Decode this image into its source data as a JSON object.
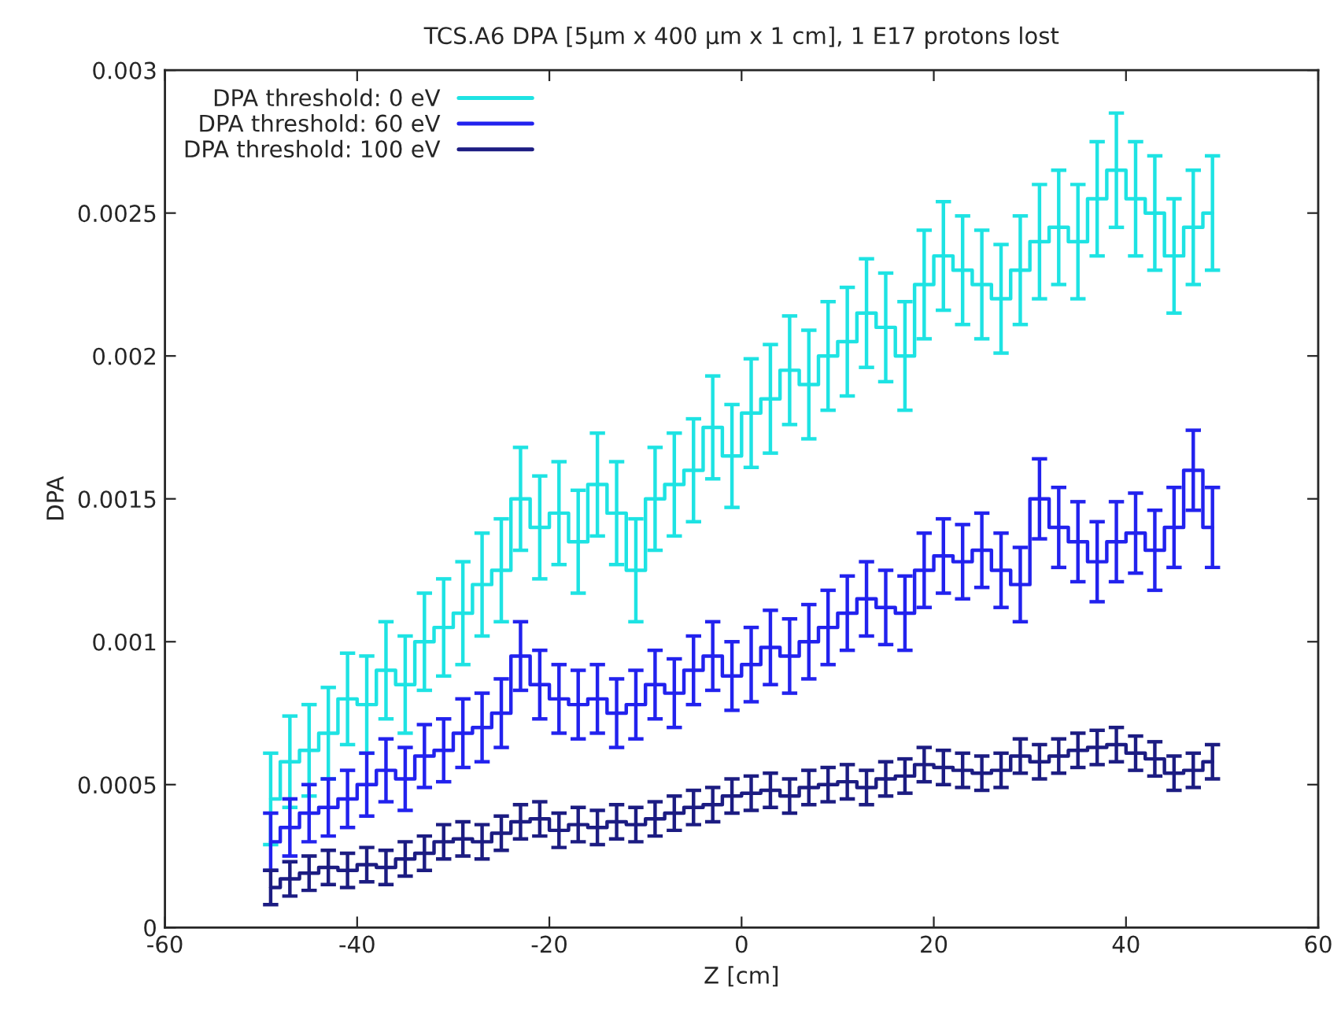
{
  "chart_data": {
    "type": "step",
    "title": "TCS.A6 DPA [5µm x 400 µm x 1 cm], 1 E17 protons lost",
    "xlabel": "Z [cm]",
    "ylabel": "DPA",
    "x": [
      -49,
      -47,
      -45,
      -43,
      -41,
      -39,
      -37,
      -35,
      -33,
      -31,
      -29,
      -27,
      -25,
      -23,
      -21,
      -19,
      -17,
      -15,
      -13,
      -11,
      -9,
      -7,
      -5,
      -3,
      -1,
      1,
      3,
      5,
      7,
      9,
      11,
      13,
      15,
      17,
      19,
      21,
      23,
      25,
      27,
      29,
      31,
      33,
      35,
      37,
      39,
      41,
      43,
      45,
      47,
      49
    ],
    "series": [
      {
        "name": "DPA threshold: 0 eV",
        "color": "#1ee3e3",
        "values": [
          0.00045,
          0.00058,
          0.00062,
          0.00068,
          0.0008,
          0.00078,
          0.0009,
          0.00085,
          0.001,
          0.00105,
          0.0011,
          0.0012,
          0.00125,
          0.0015,
          0.0014,
          0.00145,
          0.00135,
          0.00155,
          0.00145,
          0.00125,
          0.0015,
          0.00155,
          0.0016,
          0.00175,
          0.00165,
          0.0018,
          0.00185,
          0.00195,
          0.0019,
          0.002,
          0.00205,
          0.00215,
          0.0021,
          0.002,
          0.00225,
          0.00235,
          0.0023,
          0.00225,
          0.0022,
          0.0023,
          0.0024,
          0.00245,
          0.0024,
          0.00255,
          0.00265,
          0.00255,
          0.0025,
          0.00235,
          0.00245,
          0.0025
        ],
        "errors": [
          0.00016,
          0.00016,
          0.00016,
          0.00016,
          0.00016,
          0.00017,
          0.00017,
          0.00017,
          0.00017,
          0.00017,
          0.00018,
          0.00018,
          0.00018,
          0.00018,
          0.00018,
          0.00018,
          0.00018,
          0.00018,
          0.00018,
          0.00018,
          0.00018,
          0.00018,
          0.00018,
          0.00018,
          0.00018,
          0.00019,
          0.00019,
          0.00019,
          0.00019,
          0.00019,
          0.00019,
          0.00019,
          0.00019,
          0.00019,
          0.00019,
          0.00019,
          0.00019,
          0.00019,
          0.00019,
          0.00019,
          0.0002,
          0.0002,
          0.0002,
          0.0002,
          0.0002,
          0.0002,
          0.0002,
          0.0002,
          0.0002,
          0.0002
        ]
      },
      {
        "name": "DPA threshold: 60 eV",
        "color": "#2222ee",
        "values": [
          0.0003,
          0.00035,
          0.0004,
          0.00042,
          0.00045,
          0.0005,
          0.00055,
          0.00052,
          0.0006,
          0.00062,
          0.00068,
          0.0007,
          0.00075,
          0.00095,
          0.00085,
          0.0008,
          0.00078,
          0.0008,
          0.00075,
          0.00078,
          0.00085,
          0.00082,
          0.0009,
          0.00095,
          0.00088,
          0.00092,
          0.00098,
          0.00095,
          0.001,
          0.00105,
          0.0011,
          0.00115,
          0.00112,
          0.0011,
          0.00125,
          0.0013,
          0.00128,
          0.00132,
          0.00125,
          0.0012,
          0.0015,
          0.0014,
          0.00135,
          0.00128,
          0.00135,
          0.00138,
          0.00132,
          0.0014,
          0.0016,
          0.0014
        ],
        "errors": [
          0.0001,
          0.0001,
          0.0001,
          0.0001,
          0.0001,
          0.00011,
          0.00011,
          0.00011,
          0.00011,
          0.00011,
          0.00012,
          0.00012,
          0.00012,
          0.00012,
          0.00012,
          0.00012,
          0.00012,
          0.00012,
          0.00012,
          0.00012,
          0.00012,
          0.00012,
          0.00012,
          0.00012,
          0.00012,
          0.00013,
          0.00013,
          0.00013,
          0.00013,
          0.00013,
          0.00013,
          0.00013,
          0.00013,
          0.00013,
          0.00013,
          0.00013,
          0.00013,
          0.00013,
          0.00013,
          0.00013,
          0.00014,
          0.00014,
          0.00014,
          0.00014,
          0.00014,
          0.00014,
          0.00014,
          0.00014,
          0.00014,
          0.00014
        ]
      },
      {
        "name": "DPA threshold: 100 eV",
        "color": "#1c1c82",
        "values": [
          0.00014,
          0.00017,
          0.00019,
          0.00021,
          0.0002,
          0.00022,
          0.00021,
          0.00024,
          0.00026,
          0.0003,
          0.00031,
          0.0003,
          0.00033,
          0.00037,
          0.00038,
          0.00034,
          0.00036,
          0.00035,
          0.00037,
          0.00036,
          0.00038,
          0.0004,
          0.00042,
          0.00043,
          0.00046,
          0.00047,
          0.00048,
          0.00046,
          0.00049,
          0.0005,
          0.00051,
          0.00049,
          0.00052,
          0.00053,
          0.00057,
          0.00056,
          0.00055,
          0.00054,
          0.00055,
          0.0006,
          0.00058,
          0.0006,
          0.00062,
          0.00063,
          0.00064,
          0.00061,
          0.00059,
          0.00054,
          0.00055,
          0.00058
        ],
        "errors": [
          6e-05,
          6e-05,
          6e-05,
          6e-05,
          6e-05,
          6e-05,
          6e-05,
          6e-05,
          6e-05,
          6e-05,
          6e-05,
          6e-05,
          6e-05,
          6e-05,
          6e-05,
          6e-05,
          6e-05,
          6e-05,
          6e-05,
          6e-05,
          6e-05,
          6e-05,
          6e-05,
          6e-05,
          6e-05,
          6e-05,
          6e-05,
          6e-05,
          6e-05,
          6e-05,
          6e-05,
          6e-05,
          6e-05,
          6e-05,
          6e-05,
          6e-05,
          6e-05,
          6e-05,
          6e-05,
          6e-05,
          6e-05,
          6e-05,
          6e-05,
          6e-05,
          6e-05,
          6e-05,
          6e-05,
          6e-05,
          6e-05,
          6e-05
        ]
      }
    ],
    "xlim": [
      -60,
      60
    ],
    "xticks": [
      -60,
      -40,
      -20,
      0,
      20,
      40,
      60
    ],
    "ylim": [
      0,
      0.003
    ],
    "yticks": [
      0,
      0.0005,
      0.001,
      0.0015,
      0.002,
      0.0025,
      0.003
    ],
    "legend": "top left",
    "grid": false,
    "line_style": "solid"
  }
}
